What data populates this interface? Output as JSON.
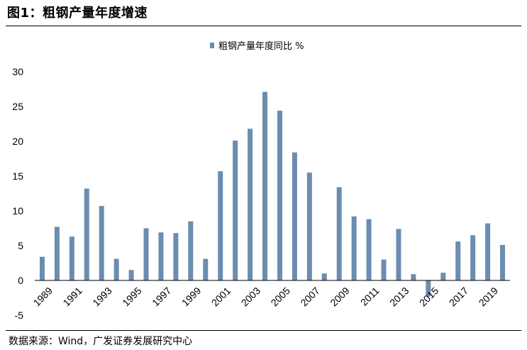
{
  "figure": {
    "title": "图1：粗钢产量年度增速",
    "source": "数据来源：Wind，广发证券发展研究中心"
  },
  "colors": {
    "bar": "#6a8db0",
    "axis": "#000000"
  },
  "chart_data": {
    "type": "bar",
    "title": "",
    "xlabel": "",
    "ylabel": "",
    "legend": {
      "position": "top-center",
      "entries": [
        "粗钢产量年度同比 %"
      ]
    },
    "grid": false,
    "ylim": [
      -5,
      30
    ],
    "yticks": [
      -5,
      0,
      5,
      10,
      15,
      20,
      25,
      30
    ],
    "xtick_labels": [
      "1989",
      "1991",
      "1993",
      "1995",
      "1997",
      "1999",
      "2001",
      "2003",
      "2005",
      "2007",
      "2009",
      "2011",
      "2013",
      "2015",
      "2017",
      "2019"
    ],
    "categories": [
      "1989",
      "1990",
      "1991",
      "1992",
      "1993",
      "1994",
      "1995",
      "1996",
      "1997",
      "1998",
      "1999",
      "2000",
      "2001",
      "2002",
      "2003",
      "2004",
      "2005",
      "2006",
      "2007",
      "2008",
      "2009",
      "2010",
      "2011",
      "2012",
      "2013",
      "2014",
      "2015",
      "2016",
      "2017",
      "2018",
      "2019",
      "2020"
    ],
    "series": [
      {
        "name": "粗钢产量年度同比 %",
        "values": [
          3.4,
          7.7,
          6.3,
          13.2,
          10.7,
          3.1,
          1.5,
          7.5,
          6.9,
          6.8,
          8.5,
          3.1,
          15.7,
          20.1,
          21.8,
          27.1,
          24.4,
          18.4,
          15.5,
          1.0,
          13.4,
          9.2,
          8.8,
          3.0,
          7.4,
          0.9,
          -2.3,
          1.1,
          5.6,
          6.5,
          8.2,
          5.1
        ]
      }
    ]
  }
}
